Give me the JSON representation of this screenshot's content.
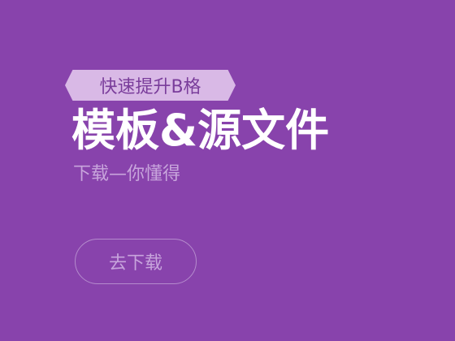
{
  "banner": {
    "background_color": "#8843ac",
    "tag": "快速提升B格",
    "headline": "模板&源文件",
    "subtitle": "下载—你懂得",
    "button_label": "去下载"
  }
}
